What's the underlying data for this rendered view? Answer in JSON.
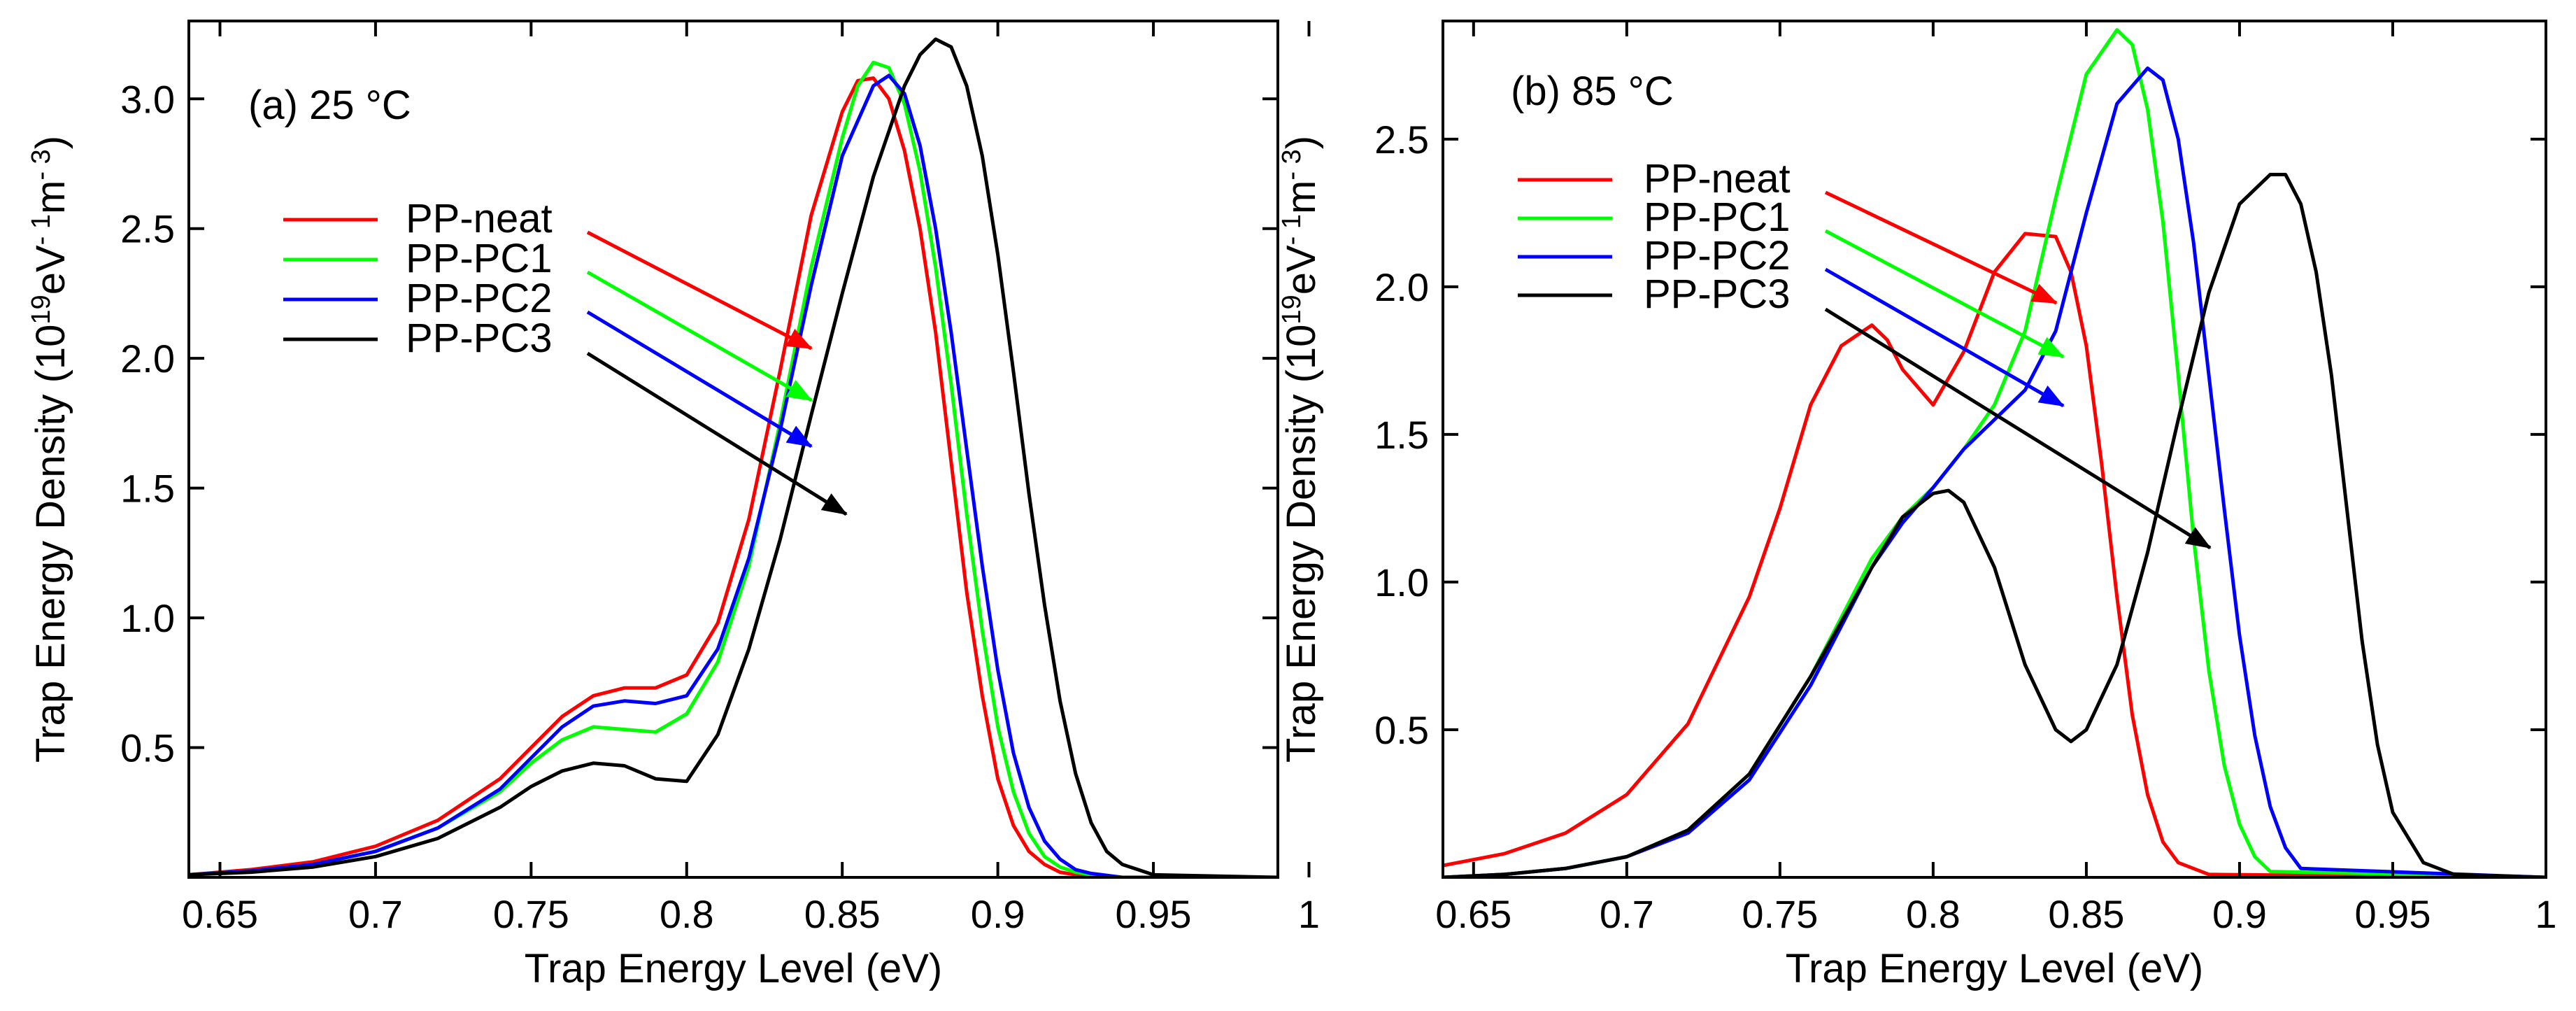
{
  "chart_data": [
    {
      "type": "line",
      "panel_label": "(a) 25 °C",
      "xlabel": "Trap Energy Level (eV)",
      "ylabel_main": "Trap Energy Density",
      "ylabel_units": "(10",
      "ylabel_sup1": "19",
      "ylabel_mid": "eV",
      "ylabel_sup2": "- 1",
      "ylabel_m": "m",
      "ylabel_sup3": "- 3",
      "ylabel_close": ")",
      "xlim": [
        0.64,
        0.99
      ],
      "ylim": [
        0,
        3.3
      ],
      "xticks": [
        0.65,
        0.7,
        0.75,
        0.8,
        0.85,
        0.9,
        0.95,
        1
      ],
      "xtick_labels": [
        "0.65",
        "0.7",
        "0.75",
        "0.8",
        "0.85",
        "0.9",
        "0.95",
        "1"
      ],
      "yticks": [
        0.5,
        1.0,
        1.5,
        2.0,
        2.5,
        3.0
      ],
      "ytick_labels": [
        "0.5",
        "1.0",
        "1.5",
        "2.0",
        "2.5",
        "3.0"
      ],
      "series": [
        {
          "name": "PP-neat",
          "color": "#ff0000",
          "x": [
            0.64,
            0.66,
            0.68,
            0.7,
            0.72,
            0.74,
            0.75,
            0.76,
            0.77,
            0.78,
            0.79,
            0.8,
            0.81,
            0.82,
            0.83,
            0.84,
            0.85,
            0.855,
            0.86,
            0.865,
            0.87,
            0.875,
            0.88,
            0.885,
            0.89,
            0.895,
            0.9,
            0.905,
            0.91,
            0.915,
            0.92,
            0.925,
            0.93,
            0.94,
            0.99
          ],
          "y": [
            0.01,
            0.03,
            0.06,
            0.12,
            0.22,
            0.38,
            0.5,
            0.62,
            0.7,
            0.73,
            0.73,
            0.78,
            0.98,
            1.38,
            1.95,
            2.55,
            2.95,
            3.07,
            3.08,
            3.0,
            2.8,
            2.5,
            2.1,
            1.6,
            1.1,
            0.7,
            0.38,
            0.2,
            0.1,
            0.05,
            0.02,
            0.01,
            0.0,
            0.0,
            0.0
          ]
        },
        {
          "name": "PP-PC1",
          "color": "#00ff00",
          "x": [
            0.64,
            0.66,
            0.68,
            0.7,
            0.72,
            0.74,
            0.75,
            0.76,
            0.77,
            0.78,
            0.79,
            0.8,
            0.81,
            0.82,
            0.83,
            0.84,
            0.85,
            0.855,
            0.86,
            0.865,
            0.87,
            0.875,
            0.88,
            0.885,
            0.89,
            0.895,
            0.9,
            0.905,
            0.91,
            0.915,
            0.92,
            0.925,
            0.93,
            0.94,
            0.99
          ],
          "y": [
            0.01,
            0.025,
            0.05,
            0.1,
            0.19,
            0.33,
            0.44,
            0.53,
            0.58,
            0.57,
            0.56,
            0.63,
            0.83,
            1.2,
            1.75,
            2.35,
            2.85,
            3.05,
            3.14,
            3.12,
            2.98,
            2.72,
            2.35,
            1.9,
            1.4,
            0.95,
            0.58,
            0.33,
            0.17,
            0.08,
            0.04,
            0.02,
            0.01,
            0.0,
            0.0
          ]
        },
        {
          "name": "PP-PC2",
          "color": "#0000ff",
          "x": [
            0.64,
            0.66,
            0.68,
            0.7,
            0.72,
            0.74,
            0.75,
            0.76,
            0.77,
            0.78,
            0.79,
            0.8,
            0.81,
            0.82,
            0.83,
            0.84,
            0.85,
            0.86,
            0.865,
            0.87,
            0.875,
            0.88,
            0.885,
            0.89,
            0.895,
            0.9,
            0.905,
            0.91,
            0.915,
            0.92,
            0.925,
            0.93,
            0.94,
            0.95,
            0.99
          ],
          "y": [
            0.01,
            0.025,
            0.05,
            0.1,
            0.19,
            0.34,
            0.46,
            0.58,
            0.66,
            0.68,
            0.67,
            0.7,
            0.88,
            1.23,
            1.72,
            2.28,
            2.78,
            3.05,
            3.09,
            3.02,
            2.82,
            2.5,
            2.1,
            1.65,
            1.2,
            0.8,
            0.48,
            0.27,
            0.14,
            0.07,
            0.03,
            0.015,
            0.0,
            0.0,
            0.0
          ]
        },
        {
          "name": "PP-PC3",
          "color": "#000000",
          "x": [
            0.64,
            0.66,
            0.68,
            0.7,
            0.72,
            0.74,
            0.75,
            0.76,
            0.77,
            0.78,
            0.79,
            0.8,
            0.81,
            0.82,
            0.83,
            0.84,
            0.85,
            0.86,
            0.87,
            0.875,
            0.88,
            0.885,
            0.89,
            0.895,
            0.9,
            0.905,
            0.91,
            0.915,
            0.92,
            0.925,
            0.93,
            0.935,
            0.94,
            0.95,
            0.99
          ],
          "y": [
            0.01,
            0.02,
            0.04,
            0.08,
            0.15,
            0.27,
            0.35,
            0.41,
            0.44,
            0.43,
            0.38,
            0.37,
            0.55,
            0.88,
            1.3,
            1.78,
            2.25,
            2.7,
            3.05,
            3.17,
            3.23,
            3.2,
            3.05,
            2.78,
            2.4,
            1.95,
            1.48,
            1.05,
            0.68,
            0.4,
            0.21,
            0.1,
            0.05,
            0.01,
            0.0
          ]
        }
      ],
      "legend": [
        "PP-neat",
        "PP-PC1",
        "PP-PC2",
        "PP-PC3"
      ]
    },
    {
      "type": "line",
      "panel_label": "(b) 85 °C",
      "xlabel": "Trap Energy Level (eV)",
      "ylabel_main": "Trap Energy Density",
      "ylabel_units": "(10",
      "ylabel_sup1": "19",
      "ylabel_mid": "eV",
      "ylabel_sup2": "- 1",
      "ylabel_m": "m",
      "ylabel_sup3": "- 3",
      "ylabel_close": ")",
      "xlim": [
        0.64,
        1.0
      ],
      "ylim": [
        0,
        2.9
      ],
      "xticks": [
        0.65,
        0.7,
        0.75,
        0.8,
        0.85,
        0.9,
        0.95,
        1
      ],
      "xtick_labels": [
        "0.65",
        "0.7",
        "0.75",
        "0.8",
        "0.85",
        "0.9",
        "0.95",
        "1"
      ],
      "yticks": [
        0.5,
        1.0,
        1.5,
        2.0,
        2.5
      ],
      "ytick_labels": [
        "0.5",
        "1.0",
        "1.5",
        "2.0",
        "2.5"
      ],
      "series": [
        {
          "name": "PP-neat",
          "color": "#ff0000",
          "x": [
            0.64,
            0.66,
            0.68,
            0.7,
            0.72,
            0.74,
            0.75,
            0.76,
            0.77,
            0.78,
            0.785,
            0.79,
            0.8,
            0.81,
            0.82,
            0.83,
            0.84,
            0.845,
            0.85,
            0.855,
            0.86,
            0.865,
            0.87,
            0.875,
            0.88,
            0.89,
            1.0
          ],
          "y": [
            0.04,
            0.08,
            0.15,
            0.28,
            0.52,
            0.95,
            1.25,
            1.6,
            1.8,
            1.87,
            1.82,
            1.72,
            1.6,
            1.78,
            2.05,
            2.18,
            2.17,
            2.05,
            1.8,
            1.4,
            0.95,
            0.55,
            0.28,
            0.12,
            0.05,
            0.01,
            0.0
          ]
        },
        {
          "name": "PP-PC1",
          "color": "#00ff00",
          "x": [
            0.64,
            0.66,
            0.68,
            0.7,
            0.72,
            0.74,
            0.76,
            0.78,
            0.79,
            0.8,
            0.81,
            0.82,
            0.83,
            0.84,
            0.85,
            0.86,
            0.865,
            0.87,
            0.875,
            0.88,
            0.885,
            0.89,
            0.895,
            0.9,
            0.905,
            0.91,
            1.0
          ],
          "y": [
            0.0,
            0.01,
            0.03,
            0.07,
            0.16,
            0.35,
            0.68,
            1.08,
            1.22,
            1.32,
            1.45,
            1.6,
            1.85,
            2.3,
            2.72,
            2.87,
            2.82,
            2.6,
            2.22,
            1.7,
            1.15,
            0.7,
            0.38,
            0.18,
            0.07,
            0.02,
            0.0
          ]
        },
        {
          "name": "PP-PC2",
          "color": "#0000ff",
          "x": [
            0.64,
            0.66,
            0.68,
            0.7,
            0.72,
            0.74,
            0.76,
            0.78,
            0.79,
            0.8,
            0.81,
            0.82,
            0.83,
            0.84,
            0.85,
            0.86,
            0.87,
            0.875,
            0.88,
            0.885,
            0.89,
            0.895,
            0.9,
            0.905,
            0.91,
            0.915,
            0.92,
            1.0
          ],
          "y": [
            0.0,
            0.01,
            0.03,
            0.07,
            0.15,
            0.33,
            0.65,
            1.05,
            1.2,
            1.32,
            1.45,
            1.55,
            1.65,
            1.85,
            2.25,
            2.62,
            2.74,
            2.7,
            2.5,
            2.15,
            1.7,
            1.25,
            0.82,
            0.48,
            0.24,
            0.1,
            0.03,
            0.0
          ]
        },
        {
          "name": "PP-PC3",
          "color": "#000000",
          "x": [
            0.64,
            0.66,
            0.68,
            0.7,
            0.72,
            0.74,
            0.76,
            0.78,
            0.79,
            0.8,
            0.805,
            0.81,
            0.82,
            0.83,
            0.84,
            0.845,
            0.85,
            0.86,
            0.87,
            0.88,
            0.89,
            0.9,
            0.91,
            0.915,
            0.92,
            0.925,
            0.93,
            0.935,
            0.94,
            0.945,
            0.95,
            0.96,
            0.97,
            1.0
          ],
          "y": [
            0.0,
            0.01,
            0.03,
            0.07,
            0.16,
            0.35,
            0.68,
            1.05,
            1.22,
            1.3,
            1.31,
            1.27,
            1.05,
            0.72,
            0.5,
            0.46,
            0.5,
            0.72,
            1.1,
            1.55,
            1.98,
            2.28,
            2.38,
            2.38,
            2.28,
            2.05,
            1.7,
            1.25,
            0.8,
            0.45,
            0.22,
            0.05,
            0.01,
            0.0
          ]
        }
      ],
      "legend": [
        "PP-neat",
        "PP-PC1",
        "PP-PC2",
        "PP-PC3"
      ]
    }
  ]
}
